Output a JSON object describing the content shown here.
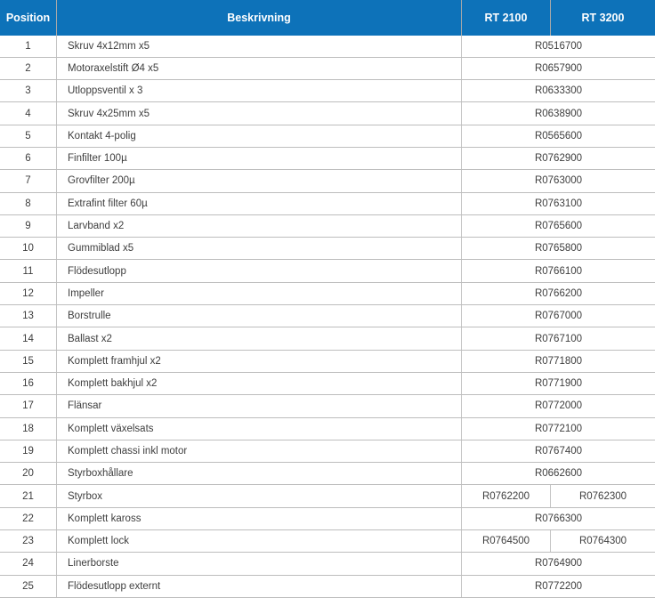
{
  "colors": {
    "header_bg": "#0d72b9",
    "header_text": "#ffffff",
    "row_text": "#3e3e3e",
    "border": "#c4c4c4"
  },
  "table": {
    "columns": {
      "position": "Position",
      "description": "Beskrivning",
      "rt2100": "RT 2100",
      "rt3200": "RT 3200"
    },
    "rows": [
      {
        "position": "1",
        "description": "Skruv 4x12mm x5",
        "part": "R0516700"
      },
      {
        "position": "2",
        "description": "Motoraxelstift Ø4 x5",
        "part": "R0657900"
      },
      {
        "position": "3",
        "description": "Utloppsventil x 3",
        "part": "R0633300"
      },
      {
        "position": "4",
        "description": "Skruv 4x25mm x5",
        "part": "R0638900"
      },
      {
        "position": "5",
        "description": "Kontakt 4-polig",
        "part": "R0565600"
      },
      {
        "position": "6",
        "description": "Finfilter 100µ",
        "part": "R0762900"
      },
      {
        "position": "7",
        "description": "Grovfilter 200µ",
        "part": "R0763000"
      },
      {
        "position": "8",
        "description": "Extrafint filter 60µ",
        "part": "R0763100"
      },
      {
        "position": "9",
        "description": "Larvband x2",
        "part": "R0765600"
      },
      {
        "position": "10",
        "description": "Gummiblad x5",
        "part": "R0765800"
      },
      {
        "position": "11",
        "description": "Flödesutlopp",
        "part": "R0766100"
      },
      {
        "position": "12",
        "description": "Impeller",
        "part": "R0766200"
      },
      {
        "position": "13",
        "description": "Borstrulle",
        "part": "R0767000"
      },
      {
        "position": "14",
        "description": "Ballast x2",
        "part": "R0767100"
      },
      {
        "position": "15",
        "description": "Komplett framhjul x2",
        "part": "R0771800"
      },
      {
        "position": "16",
        "description": "Komplett bakhjul x2",
        "part": "R0771900"
      },
      {
        "position": "17",
        "description": "Flänsar",
        "part": "R0772000"
      },
      {
        "position": "18",
        "description": "Komplett växelsats",
        "part": "R0772100"
      },
      {
        "position": "19",
        "description": "Komplett chassi inkl motor",
        "part": "R0767400"
      },
      {
        "position": "20",
        "description": "Styrboxhållare",
        "part": "R0662600"
      },
      {
        "position": "21",
        "description": "Styrbox",
        "rt2100": "R0762200",
        "rt3200": "R0762300"
      },
      {
        "position": "22",
        "description": "Komplett kaross",
        "part": "R0766300"
      },
      {
        "position": "23",
        "description": "Komplett lock",
        "rt2100": "R0764500",
        "rt3200": "R0764300"
      },
      {
        "position": "24",
        "description": "Linerborste",
        "part": "R0764900"
      },
      {
        "position": "25",
        "description": "Flödesutlopp externt",
        "part": "R0772200"
      }
    ]
  }
}
